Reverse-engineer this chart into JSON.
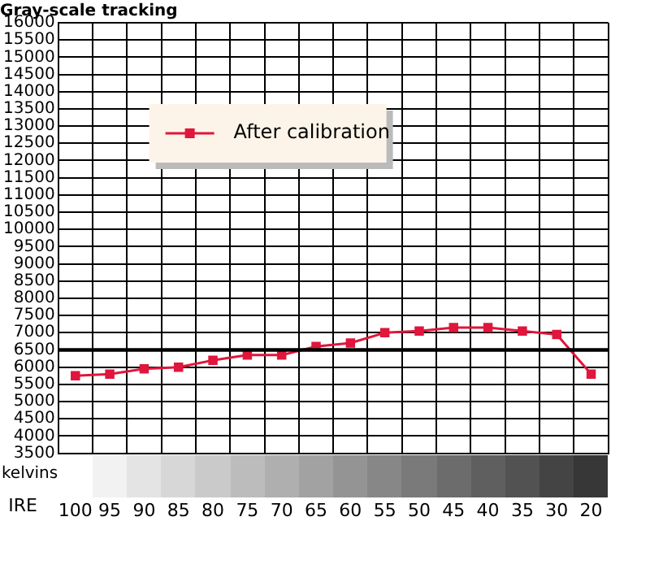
{
  "chart_data": {
    "type": "line",
    "title": "Gray-scale tracking",
    "xlabel": "IRE",
    "annotations": [
      "kelvins"
    ],
    "categories": [
      "100",
      "95",
      "90",
      "85",
      "80",
      "75",
      "70",
      "65",
      "60",
      "55",
      "50",
      "45",
      "40",
      "35",
      "30",
      "20"
    ],
    "series": [
      {
        "name": "After calibration",
        "color": "#e0163c",
        "values": [
          5750,
          5800,
          5950,
          6000,
          6200,
          6350,
          6350,
          6600,
          6700,
          7000,
          7050,
          7150,
          7150,
          7050,
          6950,
          5800
        ]
      }
    ],
    "ylim": [
      3500,
      16000
    ],
    "yticks": [
      3500,
      4000,
      4500,
      5000,
      5500,
      6000,
      6500,
      7000,
      7500,
      8000,
      8500,
      9000,
      9500,
      10000,
      10500,
      11000,
      11500,
      12000,
      12500,
      13000,
      13500,
      14000,
      14500,
      15000,
      15500,
      16000
    ],
    "ref_lines": [
      {
        "axis": "y",
        "value": 6500,
        "color": "#000000"
      }
    ],
    "grid": true,
    "legend": "top left",
    "marker": "square",
    "line_style": "solid"
  }
}
